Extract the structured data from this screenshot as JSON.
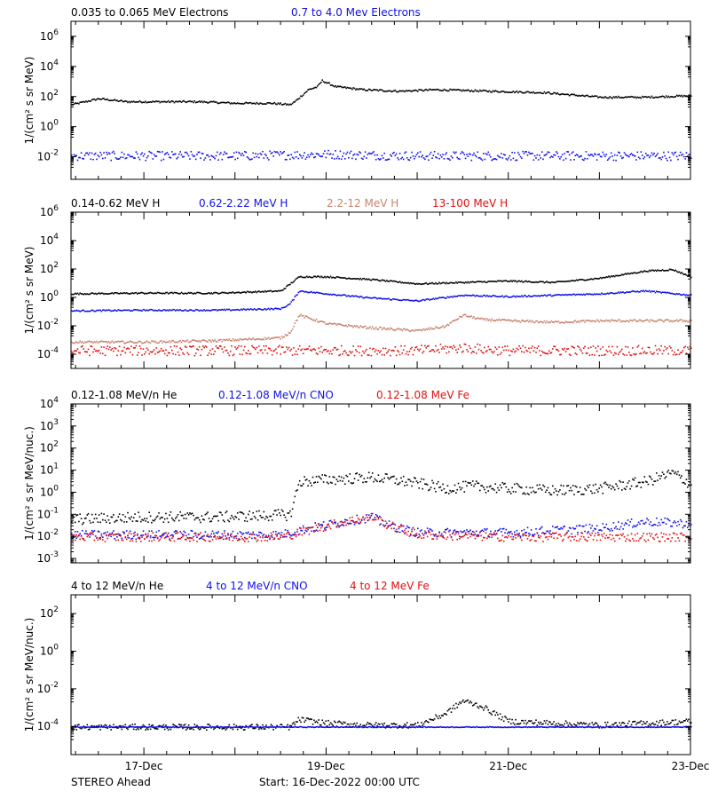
{
  "footer": {
    "spacecraft": "STEREO Ahead",
    "start": "Start: 16-Dec-2022 00:00 UTC"
  },
  "colors": {
    "black": "#000000",
    "blue": "#1010e8",
    "tan": "#c8826e",
    "red": "#e01010"
  },
  "chart_data": [
    {
      "type": "scatter",
      "log_y": true,
      "ylabel": "1/(cm² s sr MeV)",
      "ylim_exp": [
        -3.5,
        7.0
      ],
      "y_ticks": [
        6,
        4,
        2,
        0,
        -2
      ],
      "x_tick_labels": [
        "17-Dec",
        "19-Dec",
        "21-Dec",
        "23-Dec"
      ],
      "x_tick_days": [
        17,
        19,
        21,
        23
      ],
      "xlim_days": [
        16.2,
        23.0
      ],
      "legend": [
        {
          "label": "0.035 to 0.065 MeV Electrons",
          "color": "#000000"
        },
        {
          "label": "0.7 to 4.0 Mev Electrons",
          "color": "#1010e8"
        }
      ],
      "series": [
        {
          "name": "0.035 to 0.065 MeV Electrons",
          "color": "#000000",
          "scatter": 0.06,
          "x": [
            16.2,
            16.5,
            16.8,
            17.2,
            17.6,
            18.0,
            18.4,
            18.6,
            18.65,
            18.8,
            18.9,
            18.95,
            19.1,
            19.4,
            19.8,
            20.2,
            20.8,
            21.4,
            22.0,
            22.5,
            23.0
          ],
          "y": [
            1.5,
            1.9,
            1.7,
            1.7,
            1.7,
            1.6,
            1.6,
            1.5,
            1.7,
            2.5,
            2.7,
            3.1,
            2.7,
            2.5,
            2.4,
            2.5,
            2.4,
            2.3,
            2.0,
            2.0,
            2.1
          ]
        },
        {
          "name": "0.7 to 4.0 Mev Electrons",
          "color": "#1010e8",
          "scatter": 0.3,
          "x": [
            16.2,
            17.0,
            18.0,
            19.0,
            20.0,
            21.0,
            22.0,
            23.0
          ],
          "y": [
            -1.9,
            -1.9,
            -1.9,
            -1.8,
            -1.9,
            -1.9,
            -1.9,
            -1.9
          ]
        }
      ]
    },
    {
      "type": "scatter",
      "log_y": true,
      "ylabel": "1/(cm² s sr MeV)",
      "ylim_exp": [
        -5.0,
        6.0
      ],
      "y_ticks": [
        6,
        4,
        2,
        0,
        -2,
        -4
      ],
      "x_tick_labels": [
        "17-Dec",
        "19-Dec",
        "21-Dec",
        "23-Dec"
      ],
      "x_tick_days": [
        17,
        19,
        21,
        23
      ],
      "xlim_days": [
        16.2,
        23.0
      ],
      "legend": [
        {
          "label": "0.14-0.62 MeV H",
          "color": "#000000"
        },
        {
          "label": "0.62-2.22 MeV H",
          "color": "#1010e8"
        },
        {
          "label": "2.2-12 MeV H",
          "color": "#c8826e"
        },
        {
          "label": "13-100 MeV H",
          "color": "#e01010"
        }
      ],
      "series": [
        {
          "name": "0.14-0.62 MeV H",
          "color": "#000000",
          "scatter": 0.05,
          "x": [
            16.2,
            17.0,
            17.8,
            18.5,
            18.6,
            18.7,
            19.0,
            19.5,
            20.0,
            20.5,
            21.0,
            21.5,
            22.0,
            22.5,
            22.8,
            23.0
          ],
          "y": [
            0.3,
            0.35,
            0.35,
            0.5,
            1.0,
            1.5,
            1.5,
            1.3,
            1.0,
            1.1,
            1.2,
            1.1,
            1.4,
            1.9,
            2.0,
            1.5
          ]
        },
        {
          "name": "0.62-2.22 MeV H",
          "color": "#1010e8",
          "scatter": 0.05,
          "x": [
            16.2,
            17.0,
            17.8,
            18.5,
            18.6,
            18.7,
            19.0,
            19.5,
            20.0,
            20.5,
            21.0,
            21.5,
            22.0,
            22.5,
            23.0
          ],
          "y": [
            -0.9,
            -0.85,
            -0.85,
            -0.75,
            -0.4,
            0.5,
            0.3,
            0.0,
            -0.2,
            0.2,
            0.1,
            0.2,
            0.3,
            0.5,
            0.2
          ]
        },
        {
          "name": "2.2-12 MeV H",
          "color": "#c8826e",
          "scatter": 0.08,
          "x": [
            16.2,
            17.0,
            17.8,
            18.5,
            18.6,
            18.7,
            19.0,
            19.5,
            20.0,
            20.3,
            20.5,
            20.7,
            21.0,
            21.5,
            22.0,
            23.0
          ],
          "y": [
            -3.1,
            -3.1,
            -3.0,
            -2.8,
            -2.4,
            -1.2,
            -1.8,
            -2.1,
            -2.3,
            -2.0,
            -1.2,
            -1.5,
            -1.6,
            -1.7,
            -1.6,
            -1.6
          ]
        },
        {
          "name": "13-100 MeV H",
          "color": "#e01010",
          "scatter": 0.35,
          "x": [
            16.2,
            17.0,
            18.0,
            19.0,
            20.0,
            20.5,
            20.7,
            21.0,
            22.0,
            23.0
          ],
          "y": [
            -3.7,
            -3.7,
            -3.7,
            -3.7,
            -3.7,
            -3.5,
            -3.6,
            -3.7,
            -3.7,
            -3.7
          ]
        }
      ]
    },
    {
      "type": "scatter",
      "log_y": true,
      "ylabel": "1/(cm² s sr MeV/nuc.)",
      "ylim_exp": [
        -3.2,
        4.0
      ],
      "y_ticks": [
        4,
        3,
        2,
        1,
        0,
        -1,
        -2,
        -3
      ],
      "x_tick_labels": [
        "17-Dec",
        "19-Dec",
        "21-Dec",
        "23-Dec"
      ],
      "x_tick_days": [
        17,
        19,
        21,
        23
      ],
      "xlim_days": [
        16.2,
        23.0
      ],
      "legend": [
        {
          "label": "0.12-1.08 MeV/n He",
          "color": "#000000"
        },
        {
          "label": "0.12-1.08 MeV/n CNO",
          "color": "#1010e8"
        },
        {
          "label": "0.12-1.08 MeV Fe",
          "color": "#e01010"
        }
      ],
      "series": [
        {
          "name": "0.12-1.08 MeV/n He",
          "color": "#000000",
          "scatter": 0.25,
          "x": [
            16.2,
            17.0,
            17.8,
            18.5,
            18.6,
            18.7,
            19.0,
            19.5,
            19.9,
            20.3,
            20.6,
            21.0,
            21.5,
            22.0,
            22.5,
            22.8,
            23.0
          ],
          "y": [
            -1.2,
            -1.1,
            -1.1,
            -1.0,
            -1.0,
            0.5,
            0.6,
            0.7,
            0.5,
            0.2,
            0.3,
            0.2,
            0.1,
            0.2,
            0.5,
            0.9,
            0.4
          ]
        },
        {
          "name": "0.12-1.08 MeV/n CNO",
          "color": "#1010e8",
          "scatter": 0.2,
          "x": [
            16.2,
            18.5,
            18.8,
            19.2,
            19.5,
            19.7,
            20.0,
            21.0,
            22.0,
            22.5,
            23.0
          ],
          "y": [
            -1.9,
            -1.9,
            -1.6,
            -1.3,
            -1.1,
            -1.5,
            -1.8,
            -1.8,
            -1.6,
            -1.3,
            -1.4
          ]
        },
        {
          "name": "0.12-1.08 MeV Fe",
          "color": "#e01010",
          "scatter": 0.2,
          "x": [
            16.2,
            18.5,
            18.8,
            19.2,
            19.5,
            19.7,
            20.0,
            21.0,
            22.0,
            23.0
          ],
          "y": [
            -2.0,
            -2.0,
            -1.7,
            -1.3,
            -1.1,
            -1.5,
            -1.9,
            -2.0,
            -2.0,
            -2.0
          ]
        }
      ]
    },
    {
      "type": "scatter",
      "log_y": true,
      "ylabel": "1/(cm² s sr MeV/nuc.)",
      "ylim_exp": [
        -5.5,
        3.0
      ],
      "y_ticks": [
        2,
        0,
        -2,
        -4
      ],
      "x_tick_labels": [
        "17-Dec",
        "19-Dec",
        "21-Dec",
        "23-Dec"
      ],
      "x_tick_days": [
        17,
        19,
        21,
        23
      ],
      "xlim_days": [
        16.2,
        23.0
      ],
      "legend": [
        {
          "label": "4 to 12 MeV/n He",
          "color": "#000000"
        },
        {
          "label": "4 to 12 MeV/n CNO",
          "color": "#1010e8"
        },
        {
          "label": "4 to 12 MeV Fe",
          "color": "#e01010"
        }
      ],
      "series": [
        {
          "name": "4 to 12 MeV/n He",
          "color": "#000000",
          "scatter": 0.15,
          "x": [
            16.2,
            17.0,
            18.0,
            18.6,
            18.7,
            19.0,
            19.5,
            20.0,
            20.3,
            20.5,
            20.7,
            21.0,
            21.5,
            22.0,
            22.5,
            23.0
          ],
          "y": [
            -4.0,
            -4.0,
            -4.0,
            -4.0,
            -3.6,
            -3.8,
            -3.9,
            -3.9,
            -3.3,
            -2.6,
            -2.9,
            -3.7,
            -3.8,
            -3.9,
            -3.8,
            -3.7
          ]
        },
        {
          "name": "4 to 12 MeV/n CNO",
          "color": "#1010e8",
          "scatter": 0.02,
          "x": [
            16.2,
            23.0
          ],
          "y": [
            -4.0,
            -4.0
          ]
        }
      ]
    }
  ]
}
